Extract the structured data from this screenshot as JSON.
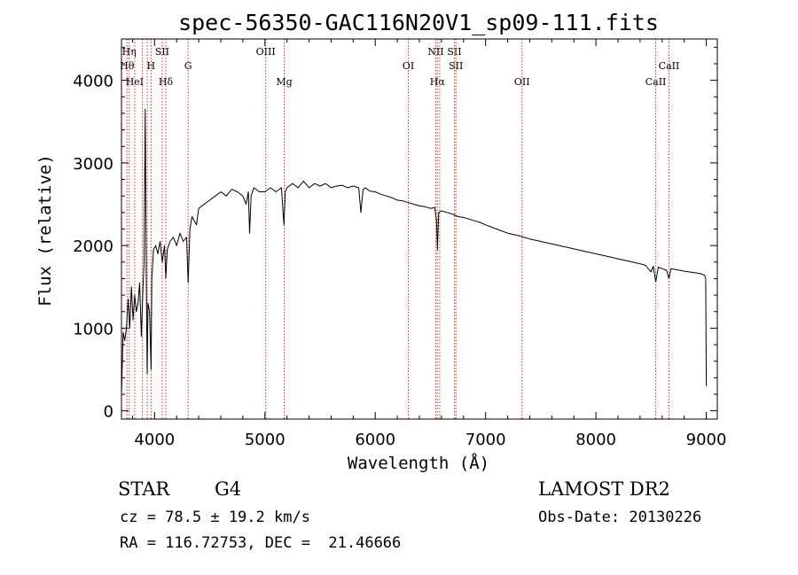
{
  "chart_data": {
    "type": "line",
    "title": "spec-56350-GAC116N20V1_sp09-111.fits",
    "xlabel": "Wavelength (Å)",
    "ylabel": "Flux (relative)",
    "xlim": [
      3700,
      9100
    ],
    "ylim": [
      -100,
      4500
    ],
    "x_ticks": [
      4000,
      5000,
      6000,
      7000,
      8000,
      9000
    ],
    "y_ticks": [
      0,
      1000,
      2000,
      3000,
      4000
    ],
    "grid": false,
    "line_color": "#000000",
    "marker_color": "#cc3333",
    "series": [
      {
        "x": [
          3700,
          3715,
          3730,
          3745,
          3760,
          3775,
          3790,
          3805,
          3820,
          3835,
          3850,
          3865,
          3880,
          3895,
          3905,
          3915,
          3925,
          3933,
          3940,
          3955,
          3968,
          3975,
          3990,
          4010,
          4030,
          4050,
          4070,
          4090,
          4102,
          4115,
          4140,
          4170,
          4200,
          4230,
          4260,
          4290,
          4304,
          4320,
          4340,
          4360,
          4380,
          4400,
          4450,
          4500,
          4550,
          4600,
          4650,
          4700,
          4750,
          4800,
          4830,
          4850,
          4861,
          4875,
          4900,
          4950,
          5000,
          5050,
          5100,
          5150,
          5172,
          5185,
          5200,
          5250,
          5300,
          5350,
          5400,
          5450,
          5500,
          5550,
          5600,
          5650,
          5700,
          5750,
          5800,
          5850,
          5870,
          5890,
          5910,
          5950,
          6000,
          6050,
          6100,
          6150,
          6200,
          6250,
          6300,
          6350,
          6400,
          6450,
          6500,
          6540,
          6555,
          6563,
          6575,
          6600,
          6650,
          6700,
          6750,
          6800,
          6850,
          6900,
          6950,
          7000,
          7100,
          7200,
          7300,
          7400,
          7500,
          7600,
          7700,
          7800,
          7900,
          8000,
          8100,
          8200,
          8300,
          8400,
          8450,
          8498,
          8520,
          8542,
          8565,
          8600,
          8640,
          8662,
          8680,
          8720,
          8760,
          8800,
          8850,
          8900,
          8950,
          8985,
          8995,
          9000
        ],
        "y": [
          200,
          950,
          850,
          1000,
          1350,
          1000,
          1500,
          1100,
          1400,
          1200,
          1300,
          1550,
          900,
          1500,
          1800,
          3650,
          1600,
          450,
          1300,
          1200,
          500,
          1600,
          1950,
          2000,
          1900,
          2050,
          1800,
          2000,
          1600,
          1950,
          2050,
          2100,
          2000,
          2150,
          2050,
          2100,
          1550,
          2200,
          2350,
          2300,
          2250,
          2450,
          2500,
          2550,
          2600,
          2650,
          2600,
          2680,
          2650,
          2600,
          2500,
          2650,
          2150,
          2600,
          2700,
          2650,
          2650,
          2700,
          2650,
          2700,
          2250,
          2650,
          2700,
          2750,
          2700,
          2780,
          2700,
          2750,
          2720,
          2750,
          2700,
          2720,
          2730,
          2700,
          2720,
          2700,
          2400,
          2680,
          2700,
          2660,
          2650,
          2620,
          2600,
          2580,
          2550,
          2540,
          2520,
          2500,
          2480,
          2470,
          2450,
          2460,
          2300,
          1950,
          2400,
          2420,
          2400,
          2380,
          2350,
          2340,
          2320,
          2300,
          2280,
          2250,
          2200,
          2150,
          2120,
          2080,
          2050,
          2020,
          1990,
          1960,
          1930,
          1900,
          1870,
          1840,
          1810,
          1780,
          1760,
          1680,
          1750,
          1560,
          1740,
          1720,
          1700,
          1600,
          1720,
          1710,
          1700,
          1690,
          1680,
          1670,
          1660,
          1640,
          1600,
          300
        ]
      }
    ],
    "lines": [
      {
        "x": 3750,
        "label": "Hθ",
        "row": 2
      },
      {
        "x": 3770,
        "label": "Hη",
        "row": 1
      },
      {
        "x": 3820,
        "label": "HeI",
        "row": 3
      },
      {
        "x": 3889,
        "label": "",
        "row": 0
      },
      {
        "x": 3934,
        "label": "",
        "row": 0
      },
      {
        "x": 3968,
        "label": "H",
        "row": 2
      },
      {
        "x": 4069,
        "label": "SII",
        "row": 1
      },
      {
        "x": 4102,
        "label": "Hδ",
        "row": 3
      },
      {
        "x": 4304,
        "label": "G",
        "row": 2
      },
      {
        "x": 5007,
        "label": "OIII",
        "row": 1
      },
      {
        "x": 5175,
        "label": "Mg",
        "row": 3
      },
      {
        "x": 6300,
        "label": "OI",
        "row": 2
      },
      {
        "x": 6548,
        "label": "NII",
        "row": 1
      },
      {
        "x": 6563,
        "label": "Hα",
        "row": 3
      },
      {
        "x": 6584,
        "label": "",
        "row": 0
      },
      {
        "x": 6717,
        "label": "SII",
        "row": 1
      },
      {
        "x": 6731,
        "label": "SII",
        "row": 2
      },
      {
        "x": 7330,
        "label": "OII",
        "row": 3
      },
      {
        "x": 8542,
        "label": "CaII",
        "row": 3
      },
      {
        "x": 8662,
        "label": "CaII",
        "row": 2
      }
    ]
  },
  "info": {
    "class": "STAR",
    "subclass": "G4",
    "survey": "LAMOST DR2",
    "cz": "cz = 78.5 ± 19.2 km/s",
    "obs_date": "Obs-Date: 20130226",
    "coords": "RA = 116.72753, DEC =  21.46666"
  }
}
